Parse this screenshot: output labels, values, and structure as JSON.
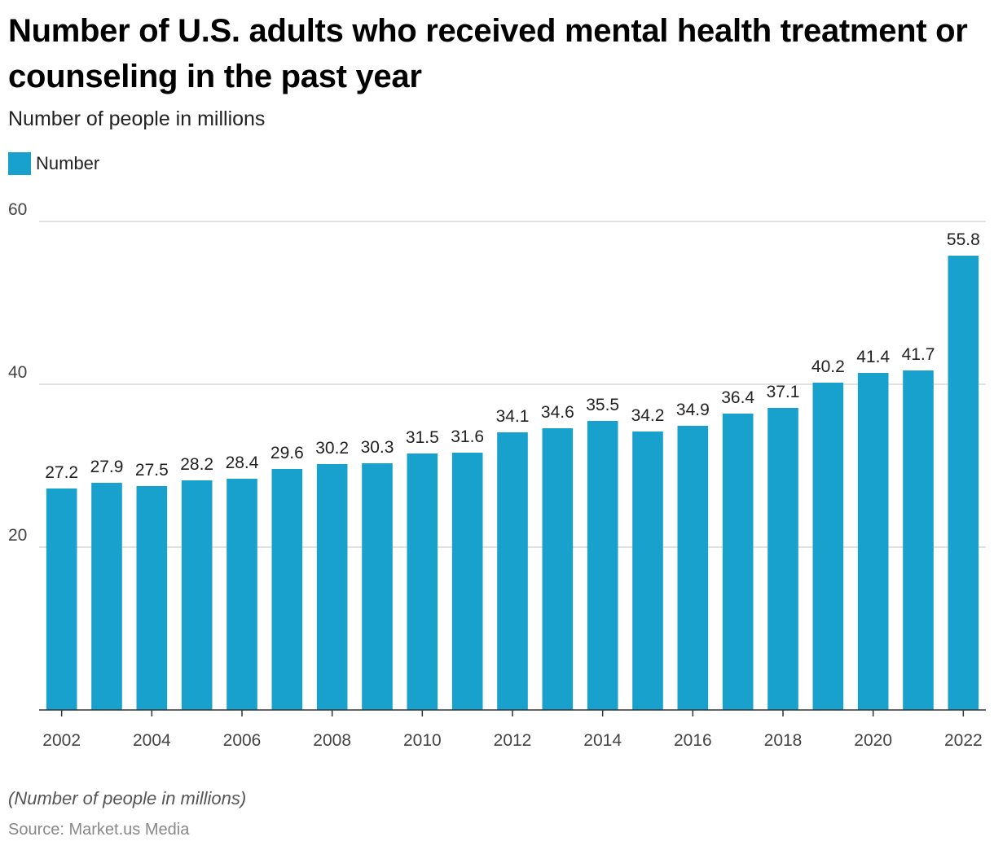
{
  "header": {
    "title": "Number of U.S. adults who received mental health treatment or counseling in the past year",
    "subtitle": "Number of people in millions"
  },
  "footer": {
    "note": "(Number of people in millions)",
    "source": "Source: Market.us Media"
  },
  "colors": {
    "bar": "#18a1cd",
    "grid": "#d9d9d9",
    "axis": "#333333",
    "tick_text": "#444444",
    "label_text": "#222222"
  },
  "chart_data": {
    "type": "bar",
    "title": "Number of U.S. adults who received mental health treatment or counseling in the past year",
    "subtitle": "Number of people in millions",
    "xlabel": "",
    "ylabel": "",
    "categories": [
      "2002",
      "2003",
      "2004",
      "2005",
      "2006",
      "2007",
      "2008",
      "2009",
      "2010",
      "2011",
      "2012",
      "2013",
      "2014",
      "2015",
      "2016",
      "2017",
      "2018",
      "2019",
      "2020",
      "2021",
      "2022"
    ],
    "series": [
      {
        "name": "Number",
        "values": [
          27.2,
          27.9,
          27.5,
          28.2,
          28.4,
          29.6,
          30.2,
          30.3,
          31.5,
          31.6,
          34.1,
          34.6,
          35.5,
          34.2,
          34.9,
          36.4,
          37.1,
          40.2,
          41.4,
          41.7,
          55.8
        ]
      }
    ],
    "data_labels": [
      "27.2",
      "27.9",
      "27.5",
      "28.2",
      "28.4",
      "29.6",
      "30.2",
      "30.3",
      "31.5",
      "31.6",
      "34.1",
      "34.6",
      "35.5",
      "34.2",
      "34.9",
      "36.4",
      "37.1",
      "40.2",
      "41.4",
      "41.7",
      "55.8"
    ],
    "x_tick_labels": [
      "2002",
      "",
      "2004",
      "",
      "2006",
      "",
      "2008",
      "",
      "2010",
      "",
      "2012",
      "",
      "2014",
      "",
      "2016",
      "",
      "2018",
      "",
      "2020",
      "",
      "2022"
    ],
    "y_ticks": [
      20,
      40,
      60
    ],
    "y_tick_labels": [
      "20",
      "40",
      "60"
    ],
    "ylim": [
      0,
      60
    ],
    "grid": true,
    "legend": "top-left"
  }
}
